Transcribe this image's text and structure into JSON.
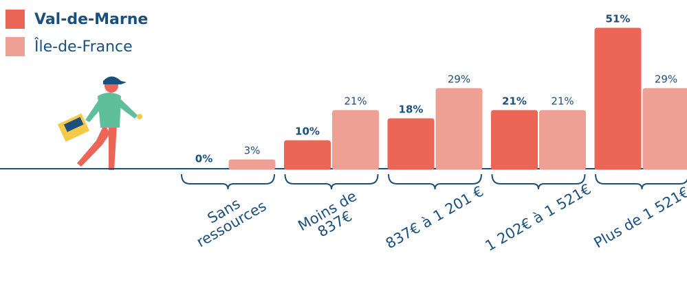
{
  "chart_data": {
    "type": "bar",
    "categories": [
      "Sans\nressources",
      "Moins de\n837€",
      "837€ à 1 201 €",
      "1 202€ à 1 521€",
      "Plus de 1 521€"
    ],
    "series": [
      {
        "name": "Val-de-Marne",
        "color": "#ec6657",
        "values": [
          0,
          10,
          18,
          21,
          51
        ],
        "value_labels": [
          "0%",
          "10%",
          "18%",
          "21%",
          "51%"
        ]
      },
      {
        "name": "Île-de-France",
        "color": "#eda093",
        "values": [
          3,
          21,
          29,
          21,
          29
        ],
        "value_labels": [
          "3%",
          "21%",
          "29%",
          "21%",
          "29%"
        ]
      }
    ]
  }
}
